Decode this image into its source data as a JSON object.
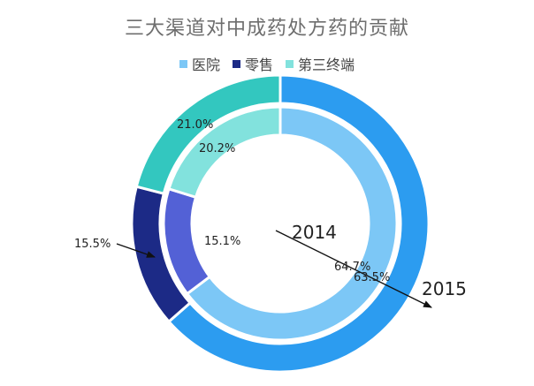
{
  "chart_data": {
    "type": "pie",
    "subtype": "nested-donut",
    "title": "三大渠道对中成药处方药的贡献",
    "categories": [
      "医院",
      "零售",
      "第三终端"
    ],
    "colors": {
      "医院_2015": "#2c9cf0",
      "零售_2015": "#1c2a86",
      "第三终端_2015": "#33c7bf",
      "医院_2014": "#7cc7f6",
      "零售_2014": "#5361d6",
      "第三终端_2014": "#82e2dd",
      "legend_医院": "#7cc7f6",
      "legend_零售": "#1c2a86",
      "legend_第三终端": "#82e2dd"
    },
    "series": [
      {
        "name": "2015",
        "ring": "outer",
        "values": [
          63.5,
          15.5,
          21.0
        ]
      },
      {
        "name": "2014",
        "ring": "inner",
        "values": [
          64.7,
          15.1,
          20.2
        ]
      }
    ],
    "labels": {
      "outer": [
        "63.5%",
        "15.5%",
        "21.0%"
      ],
      "inner": [
        "64.7%",
        "15.1%",
        "20.2%"
      ]
    },
    "annotations": [
      "2014",
      "2015"
    ],
    "legend": "top"
  }
}
